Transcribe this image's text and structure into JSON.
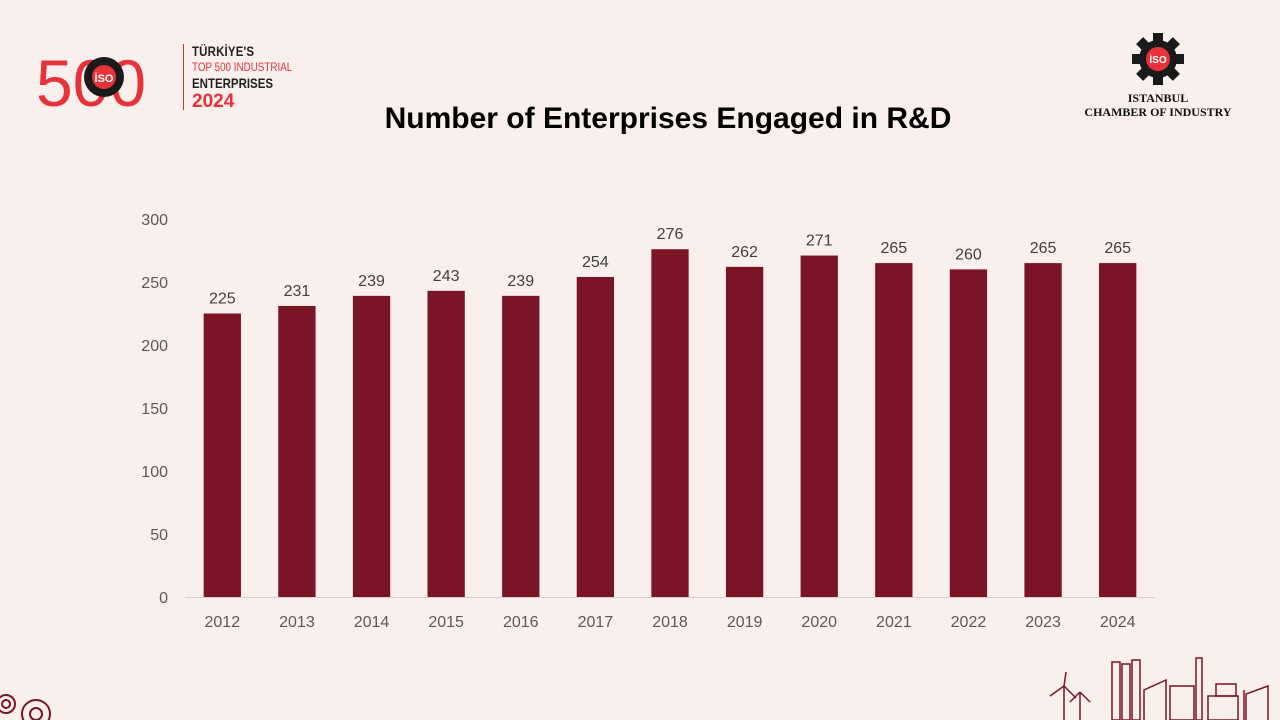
{
  "brand_left": {
    "number": "500",
    "line1": "TÜRKİYE'S",
    "line2": "TOP 500 INDUSTRIAL",
    "line3": "ENTERPRISES",
    "line4": "2024",
    "badge": "İSO"
  },
  "brand_right": {
    "badge": "İSO",
    "line1": "ISTANBUL",
    "line2": "CHAMBER OF INDUSTRY"
  },
  "colors": {
    "bar": "#7b1425",
    "accent": "#e63339",
    "background": "#f9efed"
  },
  "chart_data": {
    "type": "bar",
    "title": "Number of Enterprises Engaged in R&D",
    "categories": [
      "2012",
      "2013",
      "2014",
      "2015",
      "2016",
      "2017",
      "2018",
      "2019",
      "2020",
      "2021",
      "2022",
      "2023",
      "2024"
    ],
    "values": [
      225,
      231,
      239,
      243,
      239,
      254,
      276,
      262,
      271,
      265,
      260,
      265,
      265
    ],
    "ylim": [
      0,
      300
    ],
    "yticks": [
      0,
      50,
      100,
      150,
      200,
      250,
      300
    ],
    "grid": false,
    "legend": "none",
    "data_labels": true
  }
}
